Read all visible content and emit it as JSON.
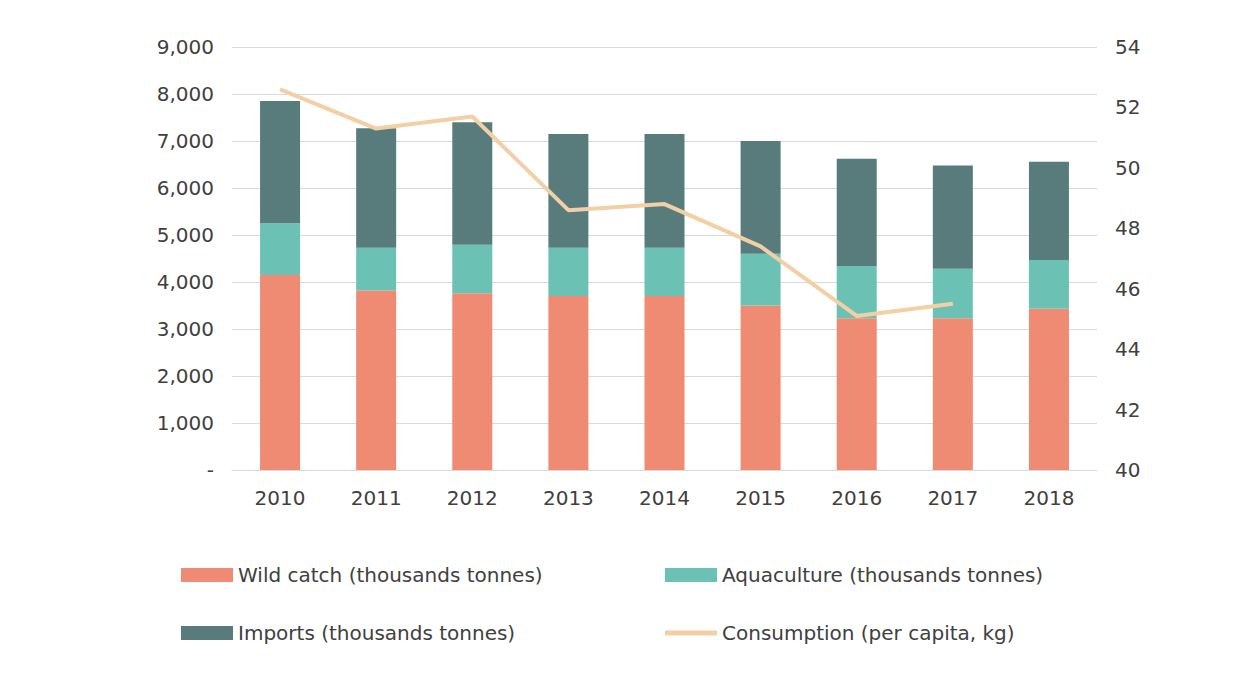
{
  "chart_data": {
    "type": "bar",
    "stacked": true,
    "categories": [
      "2010",
      "2011",
      "2012",
      "2013",
      "2014",
      "2015",
      "2016",
      "2017",
      "2018"
    ],
    "series": [
      {
        "name": "Wild catch (thousands tonnes)",
        "color": "#EF8A73",
        "values": [
          4150,
          3820,
          3760,
          3700,
          3700,
          3500,
          3230,
          3230,
          3430
        ]
      },
      {
        "name": "Aquaculture (thousands tonnes)",
        "color": "#6CC1B5",
        "values": [
          1100,
          910,
          1030,
          1030,
          1030,
          1100,
          1110,
          1050,
          1040
        ]
      },
      {
        "name": "Imports (thousands tonnes)",
        "color": "#587C7B",
        "values": [
          2600,
          2540,
          2610,
          2420,
          2420,
          2400,
          2280,
          2200,
          2090
        ]
      },
      {
        "name": "Consumption (per capita, kg)",
        "type": "line",
        "axis": "y2",
        "color": "#F2CFA5",
        "values": [
          52.6,
          51.3,
          51.7,
          48.6,
          48.8,
          47.4,
          45.1,
          45.5,
          null
        ]
      }
    ],
    "ylim": [
      0,
      9000
    ],
    "yticks": [
      {
        "value": 0,
        "label": "-"
      },
      {
        "value": 1000,
        "label": "1,000"
      },
      {
        "value": 2000,
        "label": "2,000"
      },
      {
        "value": 3000,
        "label": "3,000"
      },
      {
        "value": 4000,
        "label": "4,000"
      },
      {
        "value": 5000,
        "label": "5,000"
      },
      {
        "value": 6000,
        "label": "6,000"
      },
      {
        "value": 7000,
        "label": "7,000"
      },
      {
        "value": 8000,
        "label": "8,000"
      },
      {
        "value": 9000,
        "label": "9,000"
      }
    ],
    "y2lim": [
      40,
      54
    ],
    "y2ticks": [
      40,
      42,
      44,
      46,
      48,
      50,
      52,
      54
    ],
    "grid": true,
    "legend": "bottom"
  }
}
